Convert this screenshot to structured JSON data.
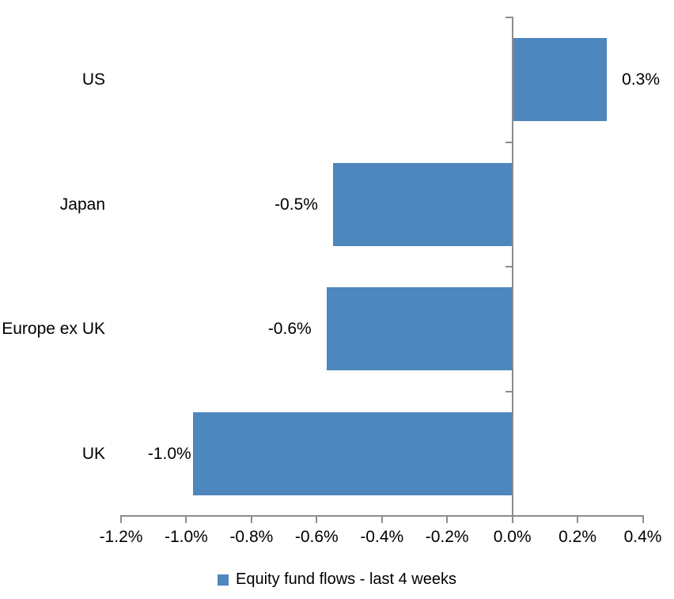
{
  "chart_data": {
    "type": "bar",
    "orientation": "horizontal",
    "title": "",
    "categories": [
      "US",
      "Japan",
      "Europe ex UK",
      "UK"
    ],
    "values": [
      0.3,
      -0.5,
      -0.6,
      -1.0
    ],
    "values_measured_pct": [
      0.29,
      -0.55,
      -0.57,
      -0.98
    ],
    "data_labels": [
      "0.3%",
      "-0.5%",
      "-0.6%",
      "-1.0%"
    ],
    "x_tick_labels": [
      "-1.2%",
      "-1.0%",
      "-0.8%",
      "-0.6%",
      "-0.4%",
      "-0.2%",
      "0.0%",
      "0.2%",
      "0.4%"
    ],
    "xlim": [
      -1.2,
      0.4
    ],
    "x_tick_step": 0.2,
    "xlabel": "",
    "ylabel": "",
    "grid": false,
    "legend": {
      "position": "bottom-center",
      "entries": [
        {
          "label": "Equity fund flows - last 4 weeks",
          "marker": "square",
          "color": "#4E86BE"
        }
      ]
    },
    "colors": {
      "bar": "#4E86BE",
      "axis_line": "#8C8C8C",
      "label_text": "#000000",
      "background": "#FFFFFF"
    }
  }
}
